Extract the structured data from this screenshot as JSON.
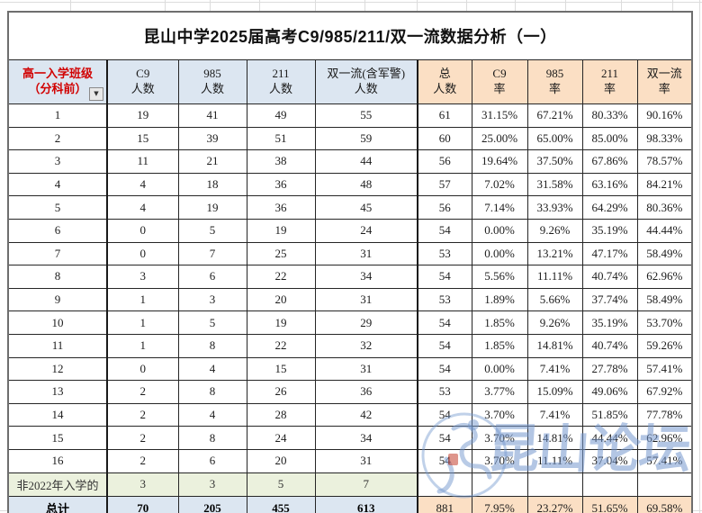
{
  "title": "昆山中学2025届高考C9/985/211/双一流数据分析（一）",
  "table": {
    "columns": [
      {
        "l1": "高一入学班级",
        "l2": "（分科前）"
      },
      {
        "l1": "C9",
        "l2": "人数"
      },
      {
        "l1": "985",
        "l2": "人数"
      },
      {
        "l1": "211",
        "l2": "人数"
      },
      {
        "l1": "双一流(含军警)",
        "l2": "人数"
      },
      {
        "l1": "总",
        "l2": "人数"
      },
      {
        "l1": "C9",
        "l2": "率"
      },
      {
        "l1": "985",
        "l2": "率"
      },
      {
        "l1": "211",
        "l2": "率"
      },
      {
        "l1": "双一流",
        "l2": "率"
      }
    ],
    "rows": [
      {
        "type": "data",
        "cells": [
          "1",
          "19",
          "41",
          "49",
          "55",
          "61",
          "31.15%",
          "67.21%",
          "80.33%",
          "90.16%"
        ]
      },
      {
        "type": "data",
        "cells": [
          "2",
          "15",
          "39",
          "51",
          "59",
          "60",
          "25.00%",
          "65.00%",
          "85.00%",
          "98.33%"
        ]
      },
      {
        "type": "data",
        "cells": [
          "3",
          "11",
          "21",
          "38",
          "44",
          "56",
          "19.64%",
          "37.50%",
          "67.86%",
          "78.57%"
        ]
      },
      {
        "type": "data",
        "cells": [
          "4",
          "4",
          "18",
          "36",
          "48",
          "57",
          "7.02%",
          "31.58%",
          "63.16%",
          "84.21%"
        ]
      },
      {
        "type": "data",
        "cells": [
          "5",
          "4",
          "19",
          "36",
          "45",
          "56",
          "7.14%",
          "33.93%",
          "64.29%",
          "80.36%"
        ]
      },
      {
        "type": "data",
        "cells": [
          "6",
          "0",
          "5",
          "19",
          "24",
          "54",
          "0.00%",
          "9.26%",
          "35.19%",
          "44.44%"
        ]
      },
      {
        "type": "data",
        "cells": [
          "7",
          "0",
          "7",
          "25",
          "31",
          "53",
          "0.00%",
          "13.21%",
          "47.17%",
          "58.49%"
        ]
      },
      {
        "type": "data",
        "cells": [
          "8",
          "3",
          "6",
          "22",
          "34",
          "54",
          "5.56%",
          "11.11%",
          "40.74%",
          "62.96%"
        ]
      },
      {
        "type": "data",
        "cells": [
          "9",
          "1",
          "3",
          "20",
          "31",
          "53",
          "1.89%",
          "5.66%",
          "37.74%",
          "58.49%"
        ]
      },
      {
        "type": "data",
        "cells": [
          "10",
          "1",
          "5",
          "19",
          "29",
          "54",
          "1.85%",
          "9.26%",
          "35.19%",
          "53.70%"
        ]
      },
      {
        "type": "data",
        "cells": [
          "11",
          "1",
          "8",
          "22",
          "32",
          "54",
          "1.85%",
          "14.81%",
          "40.74%",
          "59.26%"
        ]
      },
      {
        "type": "data",
        "cells": [
          "12",
          "0",
          "4",
          "15",
          "31",
          "54",
          "0.00%",
          "7.41%",
          "27.78%",
          "57.41%"
        ]
      },
      {
        "type": "data",
        "cells": [
          "13",
          "2",
          "8",
          "26",
          "36",
          "53",
          "3.77%",
          "15.09%",
          "49.06%",
          "67.92%"
        ]
      },
      {
        "type": "data",
        "cells": [
          "14",
          "2",
          "4",
          "28",
          "42",
          "54",
          "3.70%",
          "7.41%",
          "51.85%",
          "77.78%"
        ]
      },
      {
        "type": "data",
        "cells": [
          "15",
          "2",
          "8",
          "24",
          "34",
          "54",
          "3.70%",
          "14.81%",
          "44.44%",
          "62.96%"
        ]
      },
      {
        "type": "data",
        "cells": [
          "16",
          "2",
          "6",
          "20",
          "31",
          "54",
          "3.70%",
          "11.11%",
          "37.04%",
          "57.41%"
        ]
      },
      {
        "type": "non2022",
        "cells": [
          "非2022年入学的",
          "3",
          "3",
          "5",
          "7",
          "",
          "",
          "",
          "",
          ""
        ]
      },
      {
        "type": "total",
        "cells": [
          "总计",
          "70",
          "205",
          "455",
          "613",
          "881",
          "7.95%",
          "23.27%",
          "51.65%",
          "69.58%"
        ]
      }
    ]
  },
  "filter": {
    "icon": "caret-down-icon",
    "glyph": "▼"
  },
  "watermark": {
    "text": "昆山论坛"
  },
  "colors": {
    "header_fill": "#dce6f1",
    "rate_fill": "#fbdfc4",
    "non2022_fill": "#ebf1dd",
    "total_fill": "#dce6f1",
    "class_header_red": "#d10000",
    "watermark_blue": "#7498ce",
    "stamp_red": "#c23e2d"
  }
}
